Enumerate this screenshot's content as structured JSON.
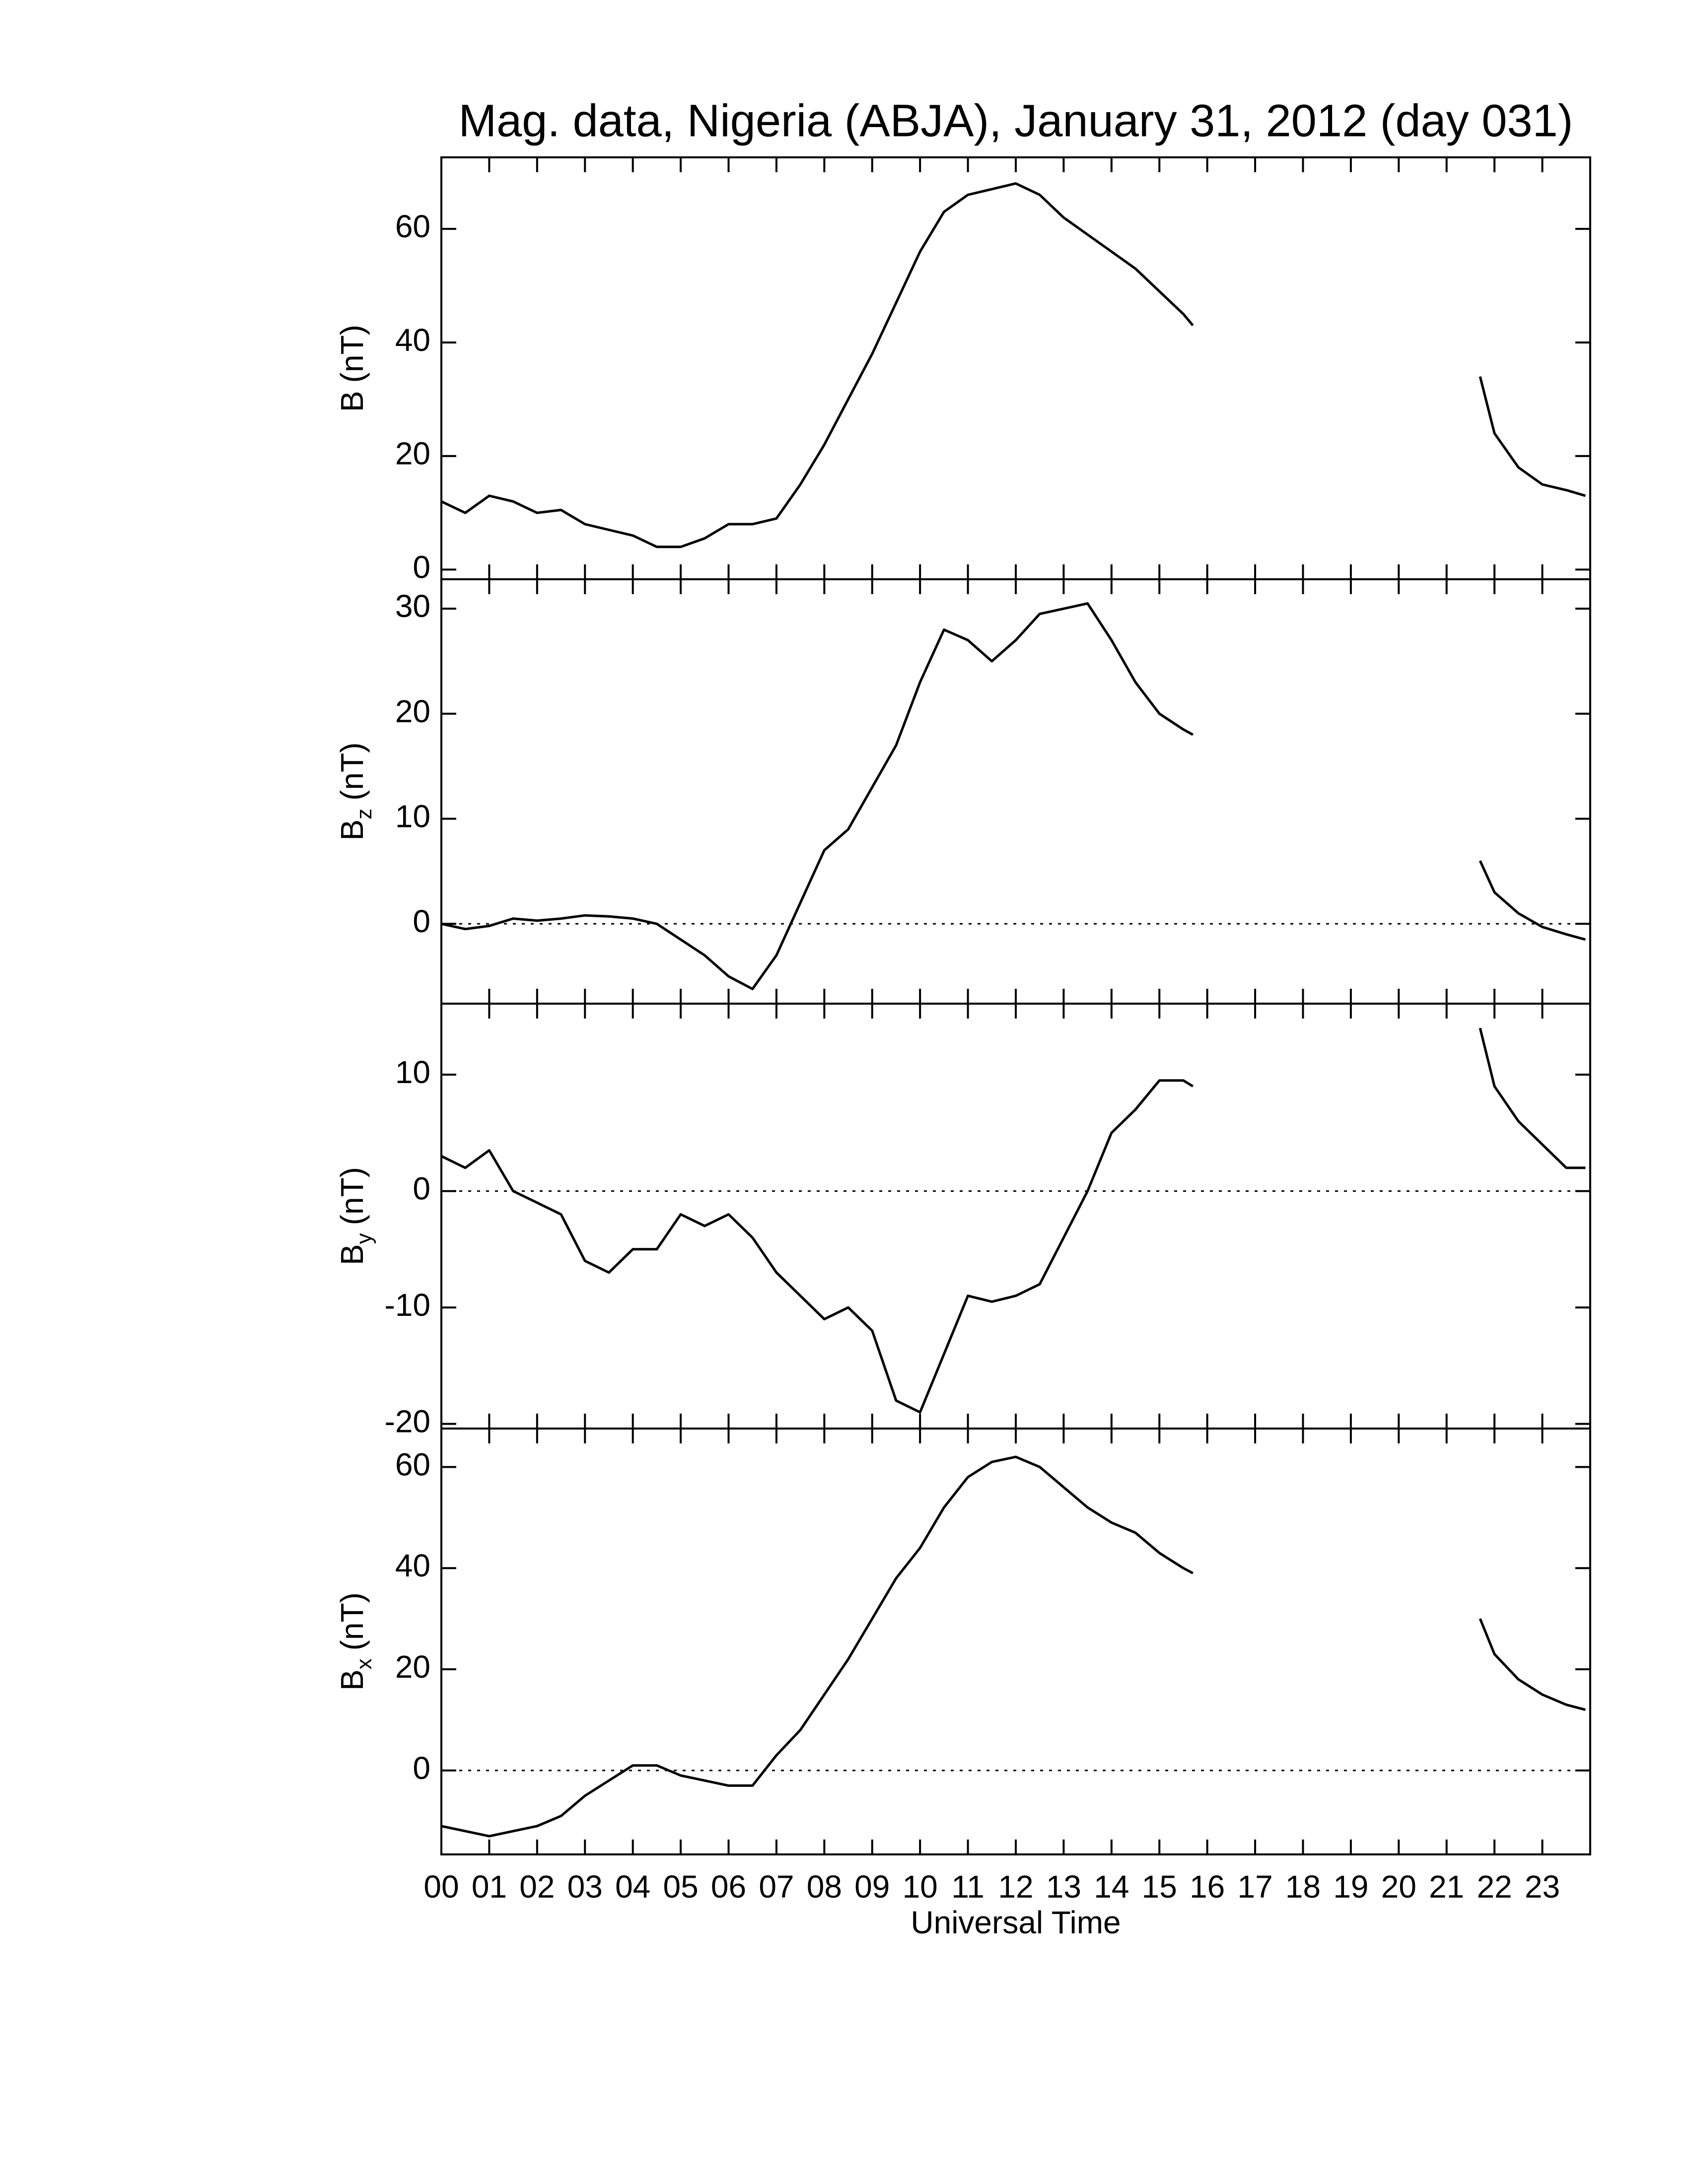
{
  "chart_data": [
    {
      "type": "line",
      "title": "Mag. data, Nigeria (ABJA), January 31, 2012 (day 031)",
      "ylabel": "B",
      "ylabel_unit": "(nT)",
      "x": [
        0,
        0.5,
        1,
        1.5,
        2,
        2.5,
        3,
        3.5,
        4,
        4.5,
        5,
        5.5,
        6,
        6.5,
        7,
        7.5,
        8,
        8.5,
        9,
        9.5,
        10,
        10.5,
        11,
        11.5,
        12,
        12.5,
        13,
        13.5,
        14,
        14.5,
        15,
        15.5,
        15.7,
        16,
        21.7,
        22,
        22.5,
        23,
        23.5,
        23.9
      ],
      "values": [
        12,
        10,
        13,
        12,
        10,
        10.5,
        8,
        7,
        6,
        4,
        4,
        5.5,
        8,
        8,
        9,
        15,
        22,
        30,
        38,
        47,
        56,
        63,
        66,
        67,
        68,
        66,
        62,
        59,
        56,
        53,
        49,
        45,
        43,
        null,
        34,
        24,
        18,
        15,
        14,
        13
      ],
      "color": "#000000",
      "xlim": [
        0,
        24
      ],
      "ylim": [
        -1.7,
        72.6
      ],
      "yticks": [
        0,
        20,
        40,
        60
      ],
      "zero_line": false
    },
    {
      "type": "line",
      "ylabel": "B",
      "ylabel_sub": "z",
      "ylabel_unit": "(nT)",
      "x": [
        0,
        0.5,
        1,
        1.5,
        2,
        2.5,
        3,
        3.5,
        4,
        4.5,
        5,
        5.5,
        6,
        6.5,
        7,
        7.5,
        8,
        8.5,
        9,
        9.5,
        10,
        10.5,
        11,
        11.5,
        12,
        12.5,
        13,
        13.5,
        14,
        14.5,
        15,
        15.5,
        15.7,
        16,
        21.7,
        22,
        22.5,
        23,
        23.5,
        23.9
      ],
      "values": [
        0,
        -0.5,
        -0.2,
        0.5,
        0.3,
        0.5,
        0.8,
        0.7,
        0.5,
        0,
        -1.5,
        -3,
        -5,
        -6.2,
        -3,
        2,
        7,
        9,
        13,
        17,
        23,
        28,
        27,
        25,
        27,
        29.5,
        30,
        30.5,
        27,
        23,
        20,
        18.5,
        18,
        null,
        6,
        3,
        1,
        -0.3,
        -1,
        -1.5
      ],
      "color": "#000000",
      "xlim": [
        0,
        24
      ],
      "ylim": [
        -7.6,
        32.8
      ],
      "yticks": [
        0,
        10,
        20,
        30
      ],
      "zero_line": true
    },
    {
      "type": "line",
      "ylabel": "B",
      "ylabel_sub": "y",
      "ylabel_unit": "(nT)",
      "x": [
        0,
        0.5,
        1,
        1.5,
        2,
        2.5,
        3,
        3.5,
        4,
        4.5,
        5,
        5.5,
        6,
        6.5,
        7,
        7.5,
        8,
        8.5,
        9,
        9.5,
        10,
        10.5,
        11,
        11.5,
        12,
        12.5,
        13,
        13.5,
        14,
        14.5,
        15,
        15.5,
        15.7,
        16,
        21.7,
        22,
        22.5,
        23,
        23.5,
        23.9
      ],
      "values": [
        3,
        2,
        3.5,
        0,
        -1,
        -2,
        -6,
        -7,
        -5,
        -5,
        -2,
        -3,
        -2,
        -4,
        -7,
        -9,
        -11,
        -10,
        -12,
        -18,
        -19,
        -14,
        -9,
        -9.5,
        -9,
        -8,
        -4,
        0,
        5,
        7,
        9.5,
        9.5,
        9,
        null,
        14,
        9,
        6,
        4,
        2,
        2
      ],
      "color": "#000000",
      "xlim": [
        0,
        24
      ],
      "ylim": [
        -20.4,
        16.1
      ],
      "yticks": [
        -20,
        -10,
        0,
        10
      ],
      "zero_line": true
    },
    {
      "type": "line",
      "ylabel": "B",
      "ylabel_sub": "x",
      "ylabel_unit": "(nT)",
      "xlabel": "Universal Time",
      "x": [
        0,
        0.5,
        1,
        1.5,
        2,
        2.5,
        3,
        3.5,
        4,
        4.5,
        5,
        5.5,
        6,
        6.5,
        7,
        7.5,
        8,
        8.5,
        9,
        9.5,
        10,
        10.5,
        11,
        11.5,
        12,
        12.5,
        13,
        13.5,
        14,
        14.5,
        15,
        15.5,
        15.7,
        16,
        21.7,
        22,
        22.5,
        23,
        23.5,
        23.9
      ],
      "values": [
        -11,
        -12,
        -13,
        -12,
        -11,
        -9,
        -5,
        -2,
        1,
        1,
        -1,
        -2,
        -3,
        -3,
        3,
        8,
        15,
        22,
        30,
        38,
        44,
        52,
        58,
        61,
        62,
        60,
        56,
        52,
        49,
        47,
        43,
        40,
        39,
        null,
        30,
        23,
        18,
        15,
        13,
        12
      ],
      "color": "#000000",
      "xlim": [
        0,
        24
      ],
      "ylim": [
        -16.6,
        67.6
      ],
      "yticks": [
        0,
        20,
        40,
        60
      ],
      "zero_line": true,
      "xticks": [
        {
          "value": 0,
          "label": "00"
        },
        {
          "value": 1,
          "label": "01"
        },
        {
          "value": 2,
          "label": "02"
        },
        {
          "value": 3,
          "label": "03"
        },
        {
          "value": 4,
          "label": "04"
        },
        {
          "value": 5,
          "label": "05"
        },
        {
          "value": 6,
          "label": "06"
        },
        {
          "value": 7,
          "label": "07"
        },
        {
          "value": 8,
          "label": "08"
        },
        {
          "value": 9,
          "label": "09"
        },
        {
          "value": 10,
          "label": "10"
        },
        {
          "value": 11,
          "label": "11"
        },
        {
          "value": 12,
          "label": "12"
        },
        {
          "value": 13,
          "label": "13"
        },
        {
          "value": 14,
          "label": "14"
        },
        {
          "value": 15,
          "label": "15"
        },
        {
          "value": 16,
          "label": "16"
        },
        {
          "value": 17,
          "label": "17"
        },
        {
          "value": 18,
          "label": "18"
        },
        {
          "value": 19,
          "label": "19"
        },
        {
          "value": 20,
          "label": "20"
        },
        {
          "value": 21,
          "label": "21"
        },
        {
          "value": 22,
          "label": "22"
        },
        {
          "value": 23,
          "label": "23"
        }
      ]
    }
  ]
}
